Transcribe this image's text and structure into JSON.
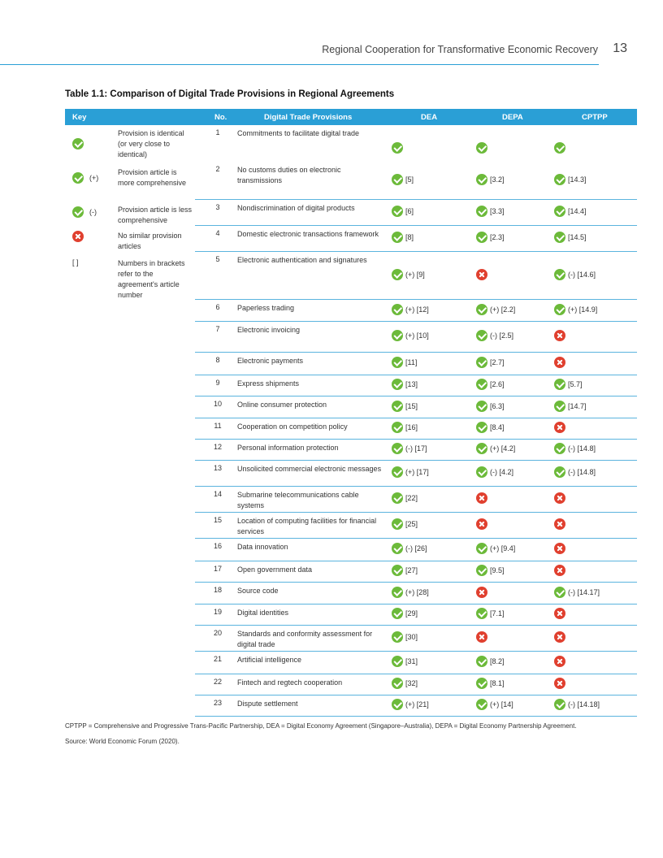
{
  "header": {
    "title": "Regional Cooperation for Transformative Economic Recovery",
    "page_number": "13"
  },
  "table": {
    "title": "Table 1.1: Comparison of Digital Trade Provisions in Regional Agreements",
    "columns": {
      "key": "Key",
      "no": "No.",
      "provision": "Digital Trade Provisions",
      "dea": "DEA",
      "depa": "DEPA",
      "cptpp": "CPTPP"
    },
    "key_legend": [
      {
        "icon": "check",
        "marker": "",
        "text": "Provision is identical (or very close to identical)"
      },
      {
        "icon": "check",
        "marker": "(+)",
        "text": "Provision article is more comprehensive"
      },
      {
        "icon": "check",
        "marker": "(-)",
        "text": "Provision article is less comprehensive"
      },
      {
        "icon": "cross",
        "marker": "",
        "text": "No similar provision articles"
      },
      {
        "icon": "",
        "marker": "[ ]",
        "text": "Numbers in brackets refer to the agreement's article number"
      }
    ],
    "rows": [
      {
        "no": "1",
        "provision": "Commitments to facilitate digital trade",
        "dea": {
          "icon": "check",
          "text": ""
        },
        "depa": {
          "icon": "check",
          "text": ""
        },
        "cptpp": {
          "icon": "check",
          "text": ""
        }
      },
      {
        "no": "2",
        "provision": "No customs duties on electronic transmissions",
        "dea": {
          "icon": "check",
          "text": "[5]"
        },
        "depa": {
          "icon": "check",
          "text": "[3.2]"
        },
        "cptpp": {
          "icon": "check",
          "text": "[14.3]"
        }
      },
      {
        "no": "3",
        "provision": "Nondiscrimination of digital products",
        "dea": {
          "icon": "check",
          "text": "[6]"
        },
        "depa": {
          "icon": "check",
          "text": "[3.3]"
        },
        "cptpp": {
          "icon": "check",
          "text": "[14.4]"
        }
      },
      {
        "no": "4",
        "provision": "Domestic electronic transactions framework",
        "dea": {
          "icon": "check",
          "text": "[8]"
        },
        "depa": {
          "icon": "check",
          "text": "[2.3]"
        },
        "cptpp": {
          "icon": "check",
          "text": "[14.5]"
        }
      },
      {
        "no": "5",
        "provision": "Electronic authentication and signatures",
        "dea": {
          "icon": "check",
          "text": "(+) [9]"
        },
        "depa": {
          "icon": "cross",
          "text": ""
        },
        "cptpp": {
          "icon": "check",
          "text": "(-) [14.6]"
        }
      },
      {
        "no": "6",
        "provision": "Paperless trading",
        "dea": {
          "icon": "check",
          "text": "(+) [12]"
        },
        "depa": {
          "icon": "check",
          "text": "(+) [2.2]"
        },
        "cptpp": {
          "icon": "check",
          "text": "(+) [14.9]"
        }
      },
      {
        "no": "7",
        "provision": "Electronic invoicing",
        "dea": {
          "icon": "check",
          "text": "(+) [10]"
        },
        "depa": {
          "icon": "check",
          "text": "(-) [2.5]"
        },
        "cptpp": {
          "icon": "cross",
          "text": ""
        }
      },
      {
        "no": "8",
        "provision": "Electronic payments",
        "dea": {
          "icon": "check",
          "text": "[11]"
        },
        "depa": {
          "icon": "check",
          "text": "[2.7]"
        },
        "cptpp": {
          "icon": "cross",
          "text": ""
        }
      },
      {
        "no": "9",
        "provision": "Express shipments",
        "dea": {
          "icon": "check",
          "text": "[13]"
        },
        "depa": {
          "icon": "check",
          "text": "[2.6]"
        },
        "cptpp": {
          "icon": "check",
          "text": "[5.7]"
        }
      },
      {
        "no": "10",
        "provision": "Online consumer protection",
        "dea": {
          "icon": "check",
          "text": "[15]"
        },
        "depa": {
          "icon": "check",
          "text": "[6.3]"
        },
        "cptpp": {
          "icon": "check",
          "text": "[14.7]"
        }
      },
      {
        "no": "11",
        "provision": "Cooperation on competition policy",
        "dea": {
          "icon": "check",
          "text": "[16]"
        },
        "depa": {
          "icon": "check",
          "text": "[8.4]"
        },
        "cptpp": {
          "icon": "cross",
          "text": ""
        }
      },
      {
        "no": "12",
        "provision": "Personal information protection",
        "dea": {
          "icon": "check",
          "text": "(-) [17]"
        },
        "depa": {
          "icon": "check",
          "text": "(+) [4.2]"
        },
        "cptpp": {
          "icon": "check",
          "text": "(-) [14.8]"
        }
      },
      {
        "no": "13",
        "provision": "Unsolicited commercial electronic messages",
        "dea": {
          "icon": "check",
          "text": "(+) [17]"
        },
        "depa": {
          "icon": "check",
          "text": "(-) [4.2]"
        },
        "cptpp": {
          "icon": "check",
          "text": "(-) [14.8]"
        }
      },
      {
        "no": "14",
        "provision": "Submarine telecommunications cable systems",
        "dea": {
          "icon": "check",
          "text": "[22]"
        },
        "depa": {
          "icon": "cross",
          "text": ""
        },
        "cptpp": {
          "icon": "cross",
          "text": ""
        }
      },
      {
        "no": "15",
        "provision": "Location of computing facilities for financial services",
        "dea": {
          "icon": "check",
          "text": "[25]"
        },
        "depa": {
          "icon": "cross",
          "text": ""
        },
        "cptpp": {
          "icon": "cross",
          "text": ""
        }
      },
      {
        "no": "16",
        "provision": "Data innovation",
        "dea": {
          "icon": "check",
          "text": "(-) [26]"
        },
        "depa": {
          "icon": "check",
          "text": "(+) [9.4]"
        },
        "cptpp": {
          "icon": "cross",
          "text": ""
        }
      },
      {
        "no": "17",
        "provision": "Open government data",
        "dea": {
          "icon": "check",
          "text": "[27]"
        },
        "depa": {
          "icon": "check",
          "text": "[9.5]"
        },
        "cptpp": {
          "icon": "cross",
          "text": ""
        }
      },
      {
        "no": "18",
        "provision": "Source code",
        "dea": {
          "icon": "check",
          "text": "(+) [28]"
        },
        "depa": {
          "icon": "cross",
          "text": ""
        },
        "cptpp": {
          "icon": "check",
          "text": "(-) [14.17]"
        }
      },
      {
        "no": "19",
        "provision": "Digital identities",
        "dea": {
          "icon": "check",
          "text": "[29]"
        },
        "depa": {
          "icon": "check",
          "text": "[7.1]"
        },
        "cptpp": {
          "icon": "cross",
          "text": ""
        }
      },
      {
        "no": "20",
        "provision": "Standards and conformity assessment for digital trade",
        "dea": {
          "icon": "check",
          "text": "[30]"
        },
        "depa": {
          "icon": "cross",
          "text": ""
        },
        "cptpp": {
          "icon": "cross",
          "text": ""
        }
      },
      {
        "no": "21",
        "provision": "Artificial intelligence",
        "dea": {
          "icon": "check",
          "text": "[31]"
        },
        "depa": {
          "icon": "check",
          "text": "[8.2]"
        },
        "cptpp": {
          "icon": "cross",
          "text": ""
        }
      },
      {
        "no": "22",
        "provision": "Fintech and regtech cooperation",
        "dea": {
          "icon": "check",
          "text": "[32]"
        },
        "depa": {
          "icon": "check",
          "text": "[8.1]"
        },
        "cptpp": {
          "icon": "cross",
          "text": ""
        }
      },
      {
        "no": "23",
        "provision": "Dispute settlement",
        "dea": {
          "icon": "check",
          "text": "(+) [21]"
        },
        "depa": {
          "icon": "check",
          "text": "(+) [14]"
        },
        "cptpp": {
          "icon": "check",
          "text": "(-) [14.18]"
        }
      }
    ]
  },
  "notes": {
    "abbreviations": "CPTPP = Comprehensive and Progressive Trans-Pacific Partnership, DEA = Digital Economy Agreement (Singapore–Australia), DEPA = Digital Economy Partnership Agreement.",
    "source": "Source: World Economic Forum (2020)."
  },
  "colors": {
    "accent": "#2a9fd6",
    "check": "#6cba3a",
    "cross": "#e0402f"
  },
  "icons": {
    "check": "check-circle-icon",
    "cross": "cross-circle-icon"
  }
}
